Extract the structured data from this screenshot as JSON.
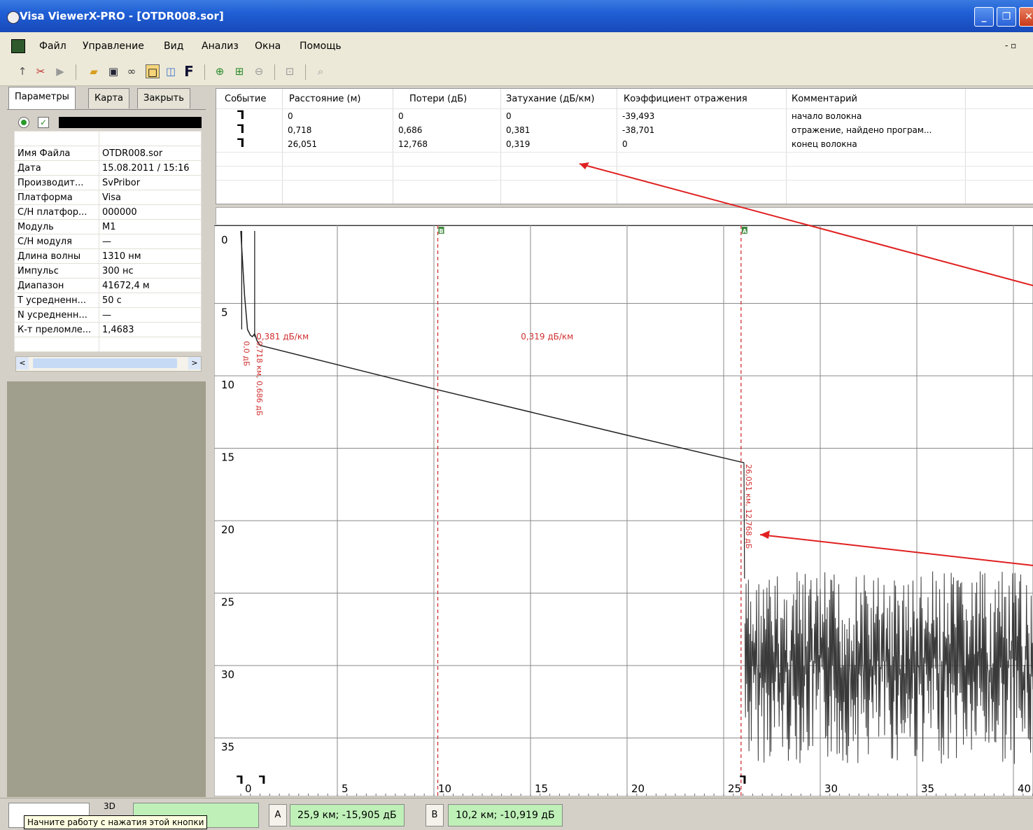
{
  "window": {
    "title": "Visa ViewerX-PRO - [OTDR008.sor]",
    "min_glyph": "_",
    "max_glyph": "❐",
    "close_glyph": "✕"
  },
  "menu": {
    "items": [
      "Файл",
      "Управление",
      "Вид",
      "Анализ",
      "Окна",
      "Помощь"
    ],
    "mdi_glyph": "- ▫"
  },
  "toolbar": {
    "icons": [
      "cursor-icon",
      "cut-icon",
      "play-icon",
      "open-folder-icon",
      "save-icon",
      "binoculars-icon",
      "frame-icon",
      "zoom-page-icon",
      "f-icon",
      "zoom-in-icon",
      "zoom-fit-icon",
      "zoom-out-icon",
      "zoom-region-icon",
      "zoom-reset-icon"
    ],
    "f_label": "F"
  },
  "left_panel": {
    "tabs": [
      "Параметры",
      "Карта",
      "Закрыть"
    ],
    "active_tab": 0,
    "check_glyph": "✓",
    "params": [
      {
        "key": "Имя Файла",
        "value": "OTDR008.sor"
      },
      {
        "key": "Дата",
        "value": "15.08.2011 / 15:16"
      },
      {
        "key": "Производит...",
        "value": "SvPribor"
      },
      {
        "key": "Платформа",
        "value": "Visa"
      },
      {
        "key": "С/Н платфор...",
        "value": "000000"
      },
      {
        "key": "Модуль",
        "value": "M1"
      },
      {
        "key": "С/Н модуля",
        "value": "—"
      },
      {
        "key": "Длина волны",
        "value": "1310 нм"
      },
      {
        "key": "Импульс",
        "value": "300 нс"
      },
      {
        "key": "Диапазон",
        "value": "41672,4 м"
      },
      {
        "key": "Т усредненн...",
        "value": "50 с"
      },
      {
        "key": "N усредненн...",
        "value": "—"
      },
      {
        "key": "К-т преломле...",
        "value": "1,4683"
      }
    ],
    "scroll_left": "<",
    "scroll_right": ">"
  },
  "events_table": {
    "columns": [
      "Событие",
      "Расстояние (м)",
      "Потери (дБ)",
      "Затухание (дБ/км)",
      "Коэффициент отражения",
      "Комментарий"
    ],
    "rows": [
      {
        "event": "⅂",
        "distance": "0",
        "loss": "0",
        "attenuation": "0",
        "reflection": "-39,493",
        "comment": "начало волокна"
      },
      {
        "event": "⅂",
        "distance": "0,718",
        "loss": "0,686",
        "attenuation": "0,381",
        "reflection": "-38,701",
        "comment": "отражение, найдено програм..."
      },
      {
        "event": "⅂",
        "distance": "26,051",
        "loss": "12,768",
        "attenuation": "0,319",
        "reflection": "0",
        "comment": "конец волокна"
      }
    ]
  },
  "chart_data": {
    "type": "line",
    "xlim": [
      0,
      42
    ],
    "ylim": [
      0,
      38
    ],
    "y_inverted": true,
    "x_ticks": [
      0,
      5,
      10,
      15,
      20,
      25,
      30,
      35,
      40
    ],
    "y_ticks": [
      0,
      5,
      10,
      15,
      20,
      25,
      30,
      35
    ],
    "grid": true,
    "trace": {
      "x": [
        0.0,
        0.2,
        0.35,
        0.5,
        0.6,
        0.718,
        0.85,
        1.0,
        10.0,
        20.0,
        26.05
      ],
      "y": [
        0.0,
        4.5,
        6.8,
        7.2,
        7.3,
        7.1,
        7.6,
        7.9,
        10.9,
        14.1,
        16.0
      ]
    },
    "reflection_spikes": [
      {
        "x": 0.05,
        "top": 0.0,
        "bottom": 6.8
      },
      {
        "x": 0.72,
        "top": 0.0,
        "bottom": 7.3
      }
    ],
    "noise": {
      "x_start": 26.1,
      "x_end": 42,
      "y_min": 23.5,
      "y_max": 36.8
    },
    "cursors": [
      {
        "label": "B",
        "x": 10.2,
        "db": -10.919
      },
      {
        "label": "A",
        "x": 25.9,
        "db": -15.905
      }
    ],
    "annotations": [
      {
        "text": "0,381 дБ/км",
        "x": 0.8,
        "y": 6.8
      },
      {
        "text": "0,319 дБ/км",
        "x": 14.5,
        "y": 6.8
      },
      {
        "text": "0,718 км, 0,686 дБ",
        "x": 0.73,
        "y": 7.5,
        "vertical": true
      },
      {
        "text": "0,0 дБ",
        "x": 0.05,
        "y": 7.5,
        "vertical": true
      },
      {
        "text": "26,051 км, 12,768 дБ",
        "x": 26.05,
        "y": 16.0,
        "vertical": true
      }
    ],
    "event_markers": [
      0.0,
      0.718,
      26.051
    ],
    "event_marker_glyph": "⅂",
    "trace_color": "#222222",
    "cursor_color": "#d03030",
    "annotation_color": "#d03030"
  },
  "status_bar": {
    "tooltip": "Начните работу с нажатия этой кнопки",
    "db_label": "3D",
    "marker_a_label": "A",
    "marker_a_readout": "25,9 км; -15,905 дБ",
    "marker_b_label": "B",
    "marker_b_readout": "10,2 км; -10,919 дБ"
  }
}
